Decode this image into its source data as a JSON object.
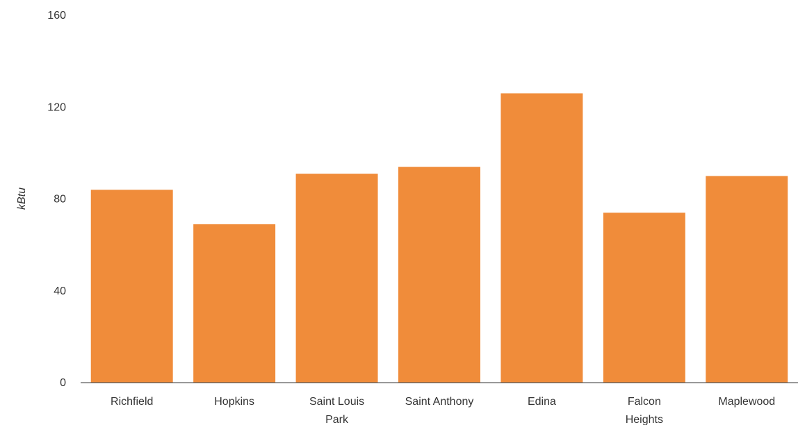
{
  "chart_data": {
    "type": "bar",
    "title": "",
    "xlabel": "",
    "ylabel": "kBtu",
    "ylim": [
      0,
      160
    ],
    "yticks": [
      0,
      40,
      80,
      120,
      160
    ],
    "grid": false,
    "legend": "none",
    "categories": [
      [
        "Richfield"
      ],
      [
        "Hopkins"
      ],
      [
        "Saint Louis",
        "Park"
      ],
      [
        "Saint Anthony"
      ],
      [
        "Edina"
      ],
      [
        "Falcon",
        "Heights"
      ],
      [
        "Maplewood"
      ]
    ],
    "values": [
      84,
      69,
      91,
      94,
      126,
      74,
      90
    ],
    "bar_color": "#f08c3a",
    "axis_color": "#333333"
  }
}
